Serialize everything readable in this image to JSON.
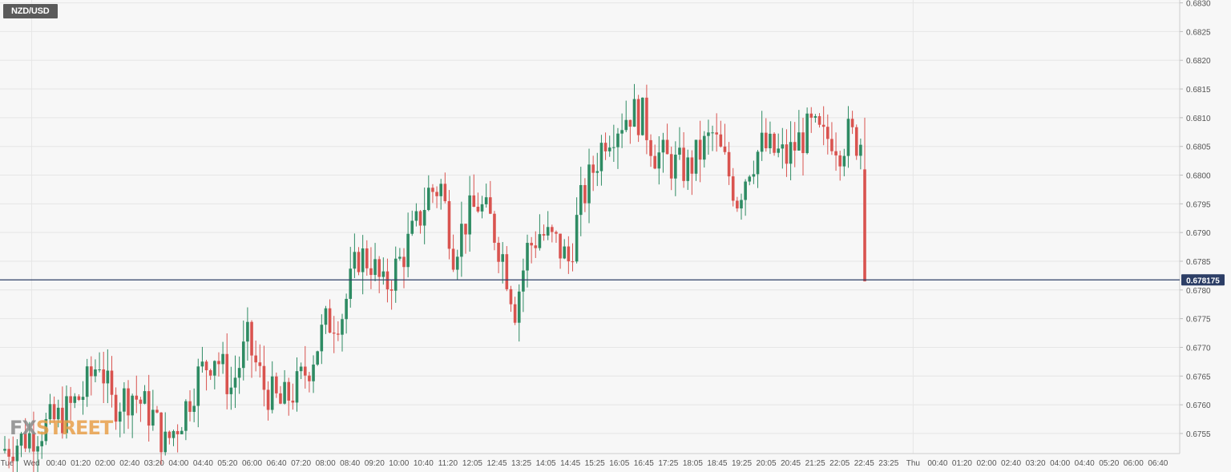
{
  "symbol": "NZD/USD",
  "logo": {
    "text_a": "FX",
    "text_b": "STREET"
  },
  "colors": {
    "background": "#f7f7f7",
    "grid": "#e6e6e6",
    "bull": "#2e8b63",
    "bear": "#d9534f",
    "price_line": "#2c3e66",
    "price_label_bg": "#2c3e66",
    "axis_text": "#555555"
  },
  "chart_data": {
    "type": "candlestick",
    "title": "NZD/USD",
    "ylim": [
      0.67515,
      0.68305
    ],
    "y_ticks": [
      "0.6755",
      "0.6760",
      "0.6765",
      "0.6770",
      "0.6775",
      "0.6780",
      "0.6785",
      "0.6790",
      "0.6795",
      "0.6800",
      "0.6805",
      "0.6810",
      "0.6815",
      "0.6820",
      "0.6825",
      "0.6830"
    ],
    "x_tick_labels": [
      "Tue",
      "Wed",
      "00:40",
      "01:20",
      "02:00",
      "02:40",
      "03:20",
      "04:00",
      "04:40",
      "05:20",
      "06:00",
      "06:40",
      "07:20",
      "08:00",
      "08:40",
      "09:20",
      "10:00",
      "10:40",
      "11:20",
      "12:05",
      "12:45",
      "13:25",
      "14:05",
      "14:45",
      "15:25",
      "16:05",
      "16:45",
      "17:25",
      "18:05",
      "18:45",
      "19:25",
      "20:05",
      "20:45",
      "21:25",
      "22:05",
      "22:45",
      "23:25",
      "Thu",
      "00:40",
      "01:20",
      "02:00",
      "02:40",
      "03:20",
      "04:00",
      "04:40",
      "05:20",
      "06:00",
      "06:40"
    ],
    "current_price": "0.678175",
    "current_price_value": 0.678175,
    "grid": true,
    "candle_count": 180,
    "waypoints": [
      [
        0,
        0.6752
      ],
      [
        8,
        0.6755
      ],
      [
        15,
        0.6758
      ],
      [
        20,
        0.6762
      ],
      [
        24,
        0.6768
      ],
      [
        27,
        0.676
      ],
      [
        32,
        0.6762
      ],
      [
        37,
        0.6758
      ],
      [
        40,
        0.6753
      ],
      [
        44,
        0.6758
      ],
      [
        48,
        0.6765
      ],
      [
        52,
        0.6769
      ],
      [
        56,
        0.6763
      ],
      [
        60,
        0.6771
      ],
      [
        64,
        0.6763
      ],
      [
        68,
        0.676
      ],
      [
        72,
        0.6763
      ],
      [
        75,
        0.6767
      ],
      [
        79,
        0.6774
      ],
      [
        83,
        0.6776
      ],
      [
        87,
        0.6786
      ],
      [
        90,
        0.6785
      ],
      [
        93,
        0.678
      ],
      [
        97,
        0.6785
      ],
      [
        101,
        0.6791
      ],
      [
        104,
        0.6797
      ],
      [
        107,
        0.6798
      ],
      [
        110,
        0.6787
      ],
      [
        113,
        0.6792
      ],
      [
        116,
        0.6795
      ],
      [
        119,
        0.6792
      ],
      [
        122,
        0.6786
      ],
      [
        125,
        0.6777
      ],
      [
        128,
        0.6787
      ],
      [
        131,
        0.679
      ],
      [
        135,
        0.6788
      ],
      [
        138,
        0.6785
      ],
      [
        141,
        0.6795
      ],
      [
        144,
        0.6801
      ],
      [
        147,
        0.6807
      ],
      [
        150,
        0.6809
      ],
      [
        153,
        0.6811
      ],
      [
        156,
        0.681
      ],
      [
        159,
        0.6804
      ],
      [
        163,
        0.6802
      ],
      [
        167,
        0.6801
      ],
      [
        170,
        0.6804
      ],
      [
        173,
        0.6807
      ],
      [
        176,
        0.6802
      ],
      [
        179,
        0.6796
      ],
      [
        182,
        0.6802
      ],
      [
        185,
        0.6805
      ],
      [
        188,
        0.6804
      ],
      [
        191,
        0.6803
      ],
      [
        194,
        0.6806
      ],
      [
        197,
        0.6808
      ],
      [
        200,
        0.6806
      ],
      [
        202,
        0.6807
      ],
      [
        204,
        0.6805
      ],
      [
        206,
        0.6807
      ],
      [
        208,
        0.6806
      ]
    ],
    "last_candle": {
      "open": 0.6801,
      "high": 0.681,
      "low": 0.67815,
      "close": 0.67815
    },
    "visible_from_index": 0
  }
}
